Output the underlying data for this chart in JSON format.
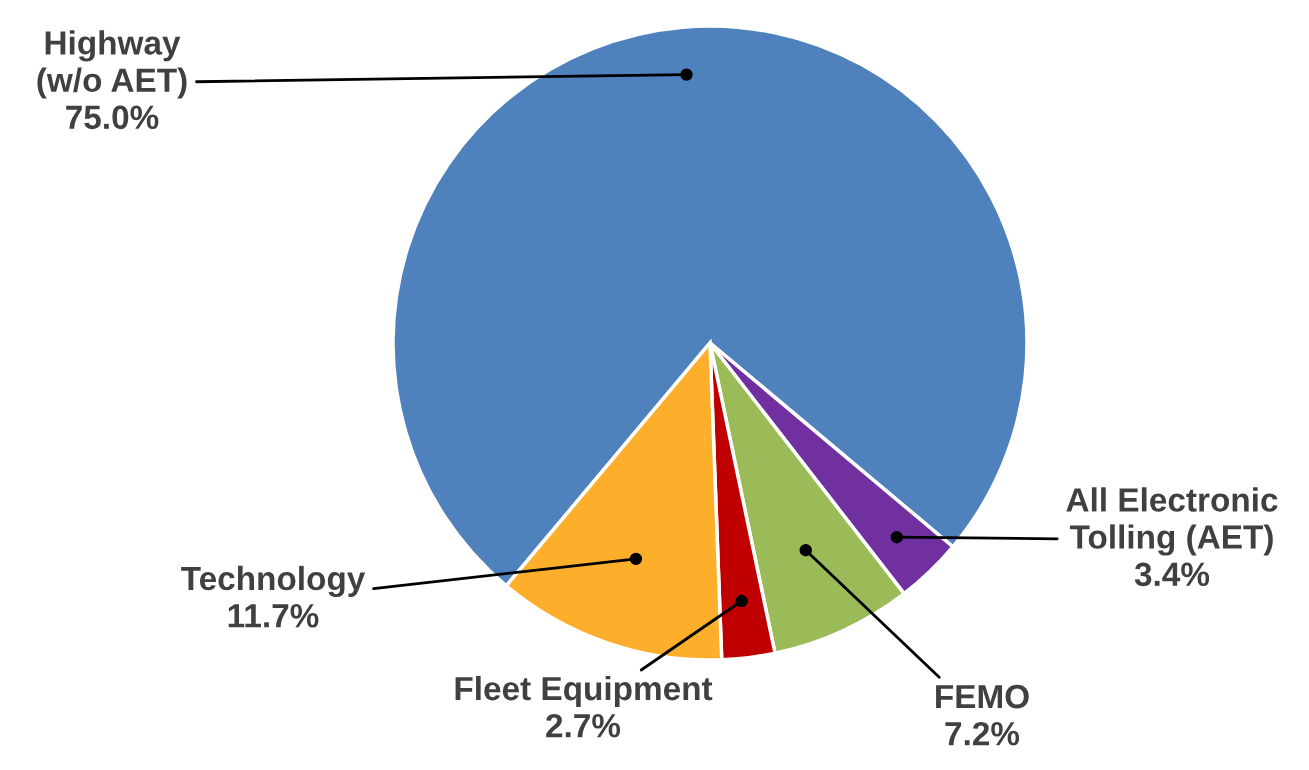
{
  "chart_data": {
    "type": "pie",
    "categories": [
      "Highway\n(w/o AET)",
      "All Electronic\nTolling (AET)",
      "FEMO",
      "Fleet Equipment",
      "Technology"
    ],
    "values": [
      75.0,
      3.4,
      7.2,
      2.7,
      11.7
    ],
    "colors": [
      "#4f81bd",
      "#7030a0",
      "#9bbb59",
      "#c00000",
      "#fdae2a"
    ],
    "value_labels": [
      "75.0%",
      "3.4%",
      "7.2%",
      "2.7%",
      "11.7%"
    ],
    "legend": false
  }
}
